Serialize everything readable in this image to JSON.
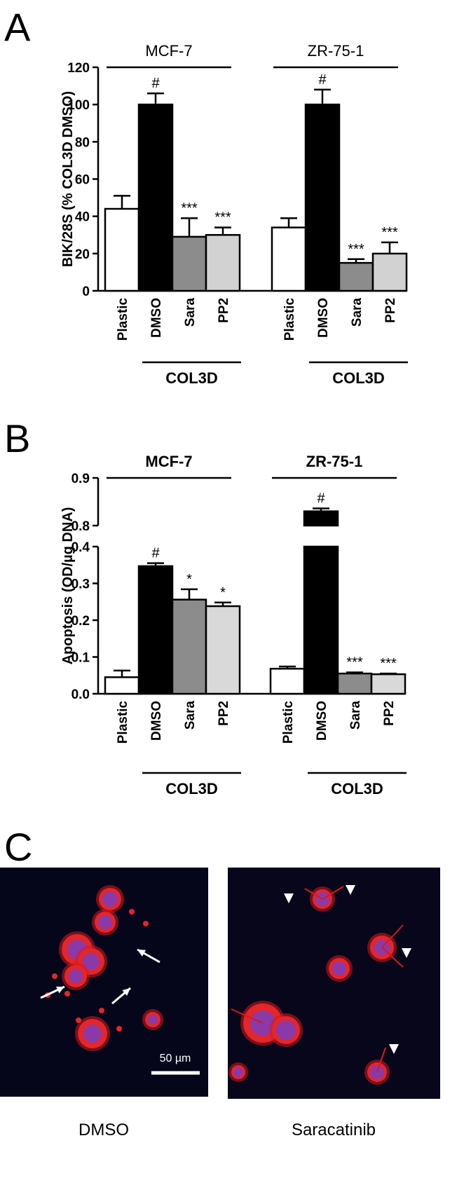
{
  "chart_data": [
    {
      "type": "bar",
      "panel_label": "A",
      "ylabel": "BIK/28S (% COL3D DMSO)",
      "ylim": [
        0,
        120
      ],
      "yticks": [
        0,
        20,
        40,
        60,
        80,
        100,
        120
      ],
      "colors": [
        "#ffffff",
        "#000000",
        "#8c8c8c",
        "#d2d2d2"
      ],
      "groups": [
        {
          "name": "MCF-7",
          "categories": [
            "Plastic",
            "DMSO",
            "Sara",
            "PP2"
          ],
          "values": [
            44,
            100,
            29,
            30
          ],
          "errors": [
            7,
            6,
            10,
            4
          ],
          "annotations": [
            null,
            "#",
            "***",
            "***"
          ],
          "bracket": "COL3D"
        },
        {
          "name": "ZR-75-1",
          "categories": [
            "Plastic",
            "DMSO",
            "Sara",
            "PP2"
          ],
          "values": [
            34,
            100,
            15,
            20
          ],
          "errors": [
            5,
            8,
            2,
            6
          ],
          "annotations": [
            null,
            "#",
            "***",
            "***"
          ],
          "bracket": "COL3D"
        }
      ]
    },
    {
      "type": "bar",
      "panel_label": "B",
      "ylabel": "Apoptosis (OD/µg DNA)",
      "ylim": [
        0,
        0.9
      ],
      "ybreak": [
        0.4,
        0.8
      ],
      "yticks": [
        {
          "value": 0,
          "label": "0.0"
        },
        0.1,
        0.2,
        0.3,
        0.4,
        0.8,
        0.9
      ],
      "colors": [
        "#ffffff",
        "#000000",
        "#8c8c8c",
        "#d9d9d9"
      ],
      "groups": [
        {
          "name": "MCF-7",
          "categories": [
            "Plastic",
            "DMSO",
            "Sara",
            "PP2"
          ],
          "values": [
            0.045,
            0.347,
            0.256,
            0.238
          ],
          "errors": [
            0.018,
            0.008,
            0.028,
            0.01
          ],
          "annotations": [
            null,
            "#",
            "*",
            "*"
          ],
          "bracket": "COL3D"
        },
        {
          "name": "ZR-75-1",
          "categories": [
            "Plastic",
            "DMSO",
            "Sara",
            "PP2"
          ],
          "values": [
            0.068,
            0.83,
            0.055,
            0.053
          ],
          "errors": [
            0.006,
            0.006,
            0.003,
            0.002
          ],
          "annotations": [
            null,
            "#",
            "***",
            "***"
          ],
          "bracket": "COL3D"
        }
      ]
    }
  ],
  "panel_c": {
    "panel_label": "C",
    "scale_bar": "50 µm",
    "captions": [
      "DMSO",
      "Saracatinib"
    ]
  }
}
